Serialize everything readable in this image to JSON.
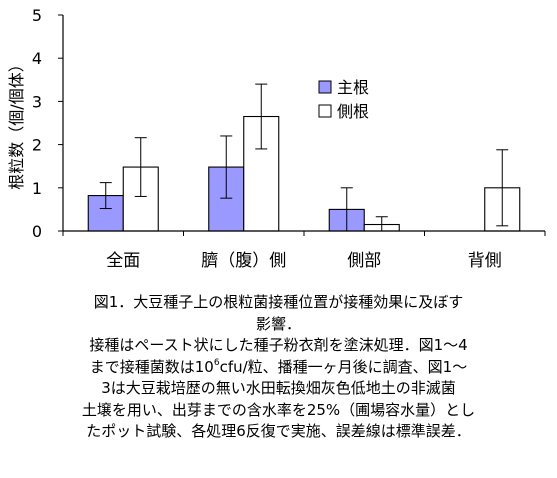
{
  "chart_data": {
    "type": "bar",
    "ylabel": "根粒数（個/個体）",
    "ylim": [
      0,
      5
    ],
    "yticks": [
      "0",
      "1",
      "2",
      "3",
      "4",
      "5"
    ],
    "categories": [
      "全面",
      "臍（腹）側",
      "側部",
      "背側"
    ],
    "series": [
      {
        "name": "主根",
        "values": [
          0.82,
          1.48,
          0.5,
          0.0
        ],
        "errors": [
          0.3,
          0.72,
          0.5,
          0.0
        ],
        "color": "#9999ff"
      },
      {
        "name": "側根",
        "values": [
          1.48,
          2.65,
          0.15,
          1.0
        ],
        "errors": [
          0.68,
          0.75,
          0.18,
          0.88
        ],
        "color": "#ffffff"
      }
    ],
    "legend_position": "right, upper-middle",
    "grid": false
  },
  "caption": {
    "line1": "図1．大豆種子上の根粒菌接種位置が接種効果に及ぼす",
    "line2": "影響．",
    "line3": "接種はペースト状にした種子粉衣剤を塗沫処理．図1～4",
    "line4a": "まで接種菌数は10",
    "line4sup": "6",
    "line4b": "cfu/粒、播種一ヶ月後に調査、図1～",
    "line5": "3は大豆栽培歴の無い水田転換畑灰色低地土の非滅菌",
    "line6": "土壌を用い、出芽までの含水率を25%（圃場容水量）とし",
    "line7": "たポット試験、各処理6反復で実施、誤差線は標準誤差．"
  }
}
